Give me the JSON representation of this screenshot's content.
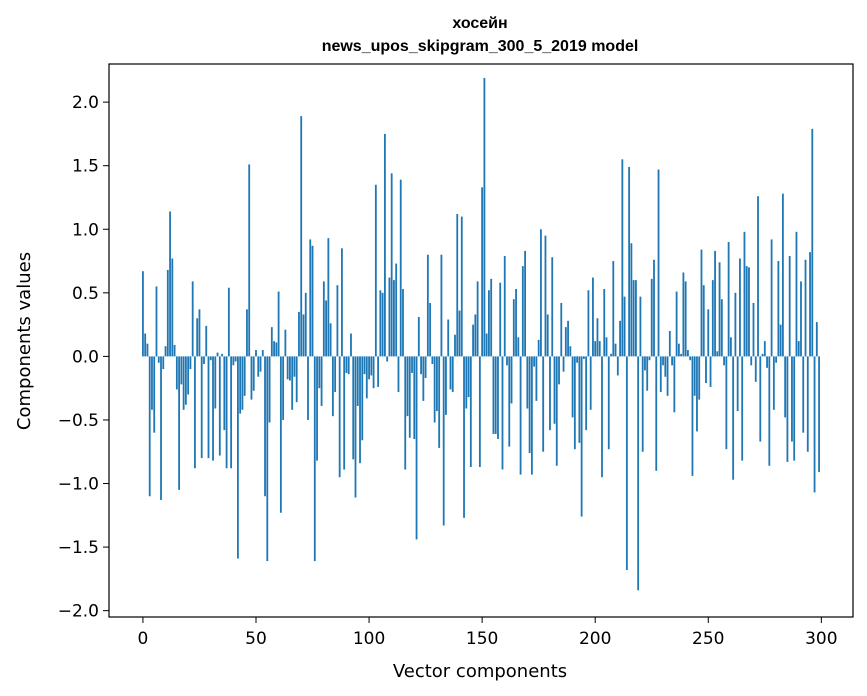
{
  "chart_data": {
    "type": "bar",
    "title": "хосейн",
    "subtitle": "news_upos_skipgram_300_5_2019 model",
    "xlabel": "Vector components",
    "ylabel": "Components values",
    "xlim": [
      -15,
      314
    ],
    "ylim": [
      -2.05,
      2.3
    ],
    "xticks": [
      0,
      50,
      100,
      150,
      200,
      250,
      300
    ],
    "xtick_labels": [
      "0",
      "50",
      "100",
      "150",
      "200",
      "250",
      "300"
    ],
    "yticks": [
      -2.0,
      -1.5,
      -1.0,
      -0.5,
      0.0,
      0.5,
      1.0,
      1.5,
      2.0
    ],
    "ytick_labels": [
      "−2.0",
      "−1.5",
      "−1.0",
      "−0.5",
      "0.0",
      "0.5",
      "1.0",
      "1.5",
      "2.0"
    ],
    "bar_color": "#1f77b4",
    "grid": false,
    "values": [
      0.67,
      0.18,
      0.1,
      -1.1,
      -0.42,
      -0.6,
      0.55,
      -0.05,
      -1.13,
      -0.1,
      0.08,
      0.68,
      1.14,
      0.77,
      0.09,
      -0.26,
      -1.05,
      -0.22,
      -0.42,
      -0.38,
      -0.3,
      -0.1,
      0.59,
      -0.88,
      0.3,
      0.37,
      -0.8,
      -0.06,
      0.24,
      -0.8,
      -0.03,
      -0.82,
      -0.41,
      0.03,
      -0.78,
      0.02,
      -0.58,
      -0.88,
      0.54,
      -0.88,
      -0.07,
      -0.04,
      -1.59,
      -0.45,
      -0.42,
      -0.31,
      0.37,
      1.51,
      -0.34,
      -0.27,
      0.05,
      -0.16,
      -0.12,
      0.05,
      -1.1,
      -1.61,
      -0.52,
      0.23,
      0.12,
      0.11,
      0.51,
      -1.23,
      -0.5,
      0.21,
      -0.18,
      -0.19,
      -0.42,
      -0.16,
      -0.36,
      0.35,
      1.89,
      0.33,
      0.5,
      -0.5,
      0.92,
      0.87,
      -1.61,
      -0.82,
      -0.25,
      -0.39,
      0.59,
      0.44,
      0.93,
      0.26,
      -0.47,
      -0.28,
      0.56,
      -0.95,
      0.85,
      -0.89,
      -0.13,
      -0.14,
      0.18,
      -0.81,
      -1.11,
      -0.39,
      -0.84,
      -0.66,
      -0.14,
      -0.33,
      -0.18,
      -0.15,
      -0.25,
      1.35,
      -0.24,
      0.52,
      0.5,
      1.75,
      -0.04,
      0.62,
      1.44,
      0.6,
      0.73,
      -0.28,
      1.39,
      0.53,
      -0.89,
      -0.47,
      -0.64,
      -0.13,
      -0.65,
      -1.44,
      0.31,
      -0.14,
      -0.35,
      -0.17,
      0.8,
      0.42,
      -0.06,
      -0.52,
      -0.43,
      -0.72,
      0.8,
      -1.33,
      -0.46,
      0.29,
      -0.26,
      -0.28,
      0.17,
      1.12,
      0.36,
      1.1,
      -1.27,
      -0.41,
      -0.32,
      -0.87,
      0.25,
      0.33,
      0.59,
      -0.87,
      1.33,
      2.19,
      0.18,
      0.52,
      0.61,
      -0.61,
      -0.61,
      -0.65,
      0.58,
      -0.89,
      0.79,
      -0.07,
      -0.71,
      -0.37,
      0.45,
      0.53,
      0.15,
      -0.93,
      0.71,
      0.83,
      -0.41,
      -0.76,
      -0.93,
      -0.08,
      -0.35,
      0.13,
      1.0,
      -0.75,
      0.95,
      0.33,
      -0.58,
      0.78,
      -0.53,
      -0.86,
      -0.22,
      0.42,
      -0.12,
      0.23,
      0.28,
      0.08,
      -0.48,
      -0.73,
      -0.05,
      -0.68,
      -1.26,
      -0.02,
      -0.58,
      0.52,
      -0.42,
      0.62,
      0.12,
      0.3,
      0.12,
      -0.95,
      0.53,
      0.15,
      -0.73,
      0.02,
      0.75,
      0.1,
      -0.15,
      0.28,
      1.55,
      0.47,
      -1.68,
      1.49,
      0.89,
      0.6,
      0.6,
      -1.84,
      0.47,
      -0.75,
      -0.11,
      -0.27,
      -0.03,
      0.61,
      0.76,
      -0.9,
      1.47,
      -0.28,
      -0.07,
      -0.16,
      -0.31,
      0.2,
      -0.07,
      -0.44,
      0.51,
      0.1,
      0.02,
      0.66,
      0.59,
      0.05,
      -0.03,
      -0.94,
      -0.31,
      -0.59,
      -0.34,
      0.84,
      0.56,
      -0.21,
      0.37,
      -0.24,
      0.6,
      0.83,
      0.04,
      0.74,
      0.45,
      -0.07,
      -0.73,
      0.9,
      0.15,
      -0.97,
      0.5,
      -0.43,
      0.77,
      -0.82,
      0.98,
      0.71,
      0.7,
      -0.07,
      0.42,
      -0.2,
      1.26,
      -0.67,
      0.02,
      0.12,
      -0.09,
      -0.86,
      0.92,
      -0.42,
      -0.05,
      0.75,
      0.25,
      1.28,
      -0.48,
      -0.83,
      0.79,
      -0.67,
      -0.82,
      0.98,
      0.12,
      0.59,
      -0.6,
      0.76,
      -0.75,
      0.82,
      1.79,
      -1.07,
      0.27,
      -0.91
    ]
  }
}
